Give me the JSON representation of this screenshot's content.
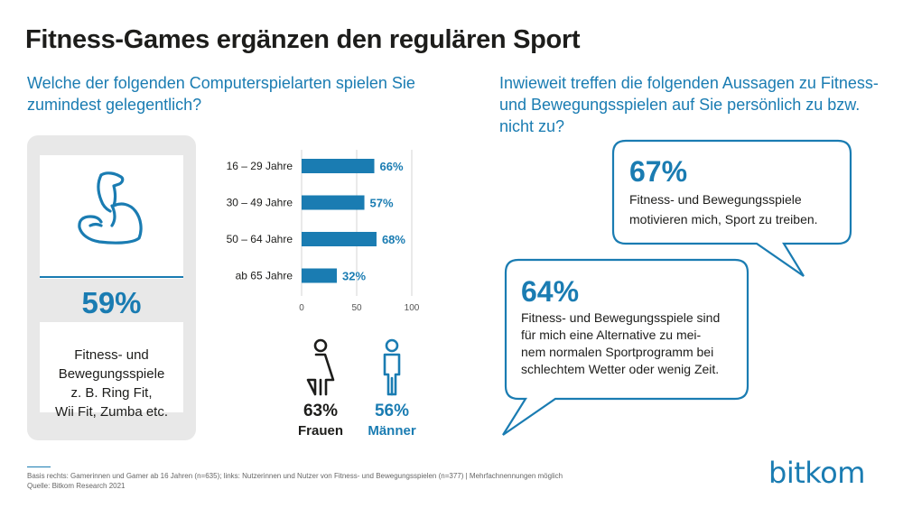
{
  "header": {
    "title": "Fitness-Games ergänzen den regulären Sport",
    "question_left": "Welche der folgenden Computerspielarten spielen Sie zumindest gelegentlich?",
    "question_right": "Inwieweit treffen die folgenden Aussagen zu Fitness- und Bewegungsspielen auf Sie persönlich zu bzw. nicht zu?"
  },
  "card": {
    "icon": "flexed-arm-icon",
    "percent": "59%",
    "lines": [
      "Fitness- und",
      "Bewegungsspiele",
      "z. B. Ring Fit,",
      "Wii Fit, Zumba etc."
    ]
  },
  "chart_data": {
    "type": "bar",
    "orientation": "horizontal",
    "categories": [
      "16 – 29 Jahre",
      "30 – 49 Jahre",
      "50 – 64 Jahre",
      "ab 65 Jahre"
    ],
    "values": [
      66,
      57,
      68,
      32
    ],
    "labels": [
      "66%",
      "57%",
      "68%",
      "32%"
    ],
    "xlim": [
      0,
      100
    ],
    "xticks": [
      "0",
      "50",
      "100"
    ],
    "color": "#1a7cb2"
  },
  "gender": {
    "female": {
      "icon": "woman-icon",
      "percent": "63%",
      "label": "Frauen",
      "color": "#1d1d1b"
    },
    "male": {
      "icon": "man-icon",
      "percent": "56%",
      "label": "Männer",
      "color": "#1a7cb2"
    }
  },
  "bubbles": [
    {
      "percent": "67%",
      "lines": [
        "Fitness- und Bewegungsspiele",
        "motivieren mich, Sport zu treiben."
      ]
    },
    {
      "percent": "64%",
      "lines": [
        "Fitness- und Bewegungsspiele sind",
        "für mich eine Alternative zu mei-",
        "nem normalen Sportprogramm bei",
        "schlechtem Wetter oder wenig Zeit."
      ]
    }
  ],
  "footer": {
    "lines": [
      "Basis rechts: Gamerinnen und Gamer ab 16 Jahren (n=635); links: Nutzerinnen und Nutzer von Fitness- und Bewegungsspielen (n=377) | Mehrfachnennungen möglich",
      "Quelle: Bitkom Research 2021"
    ],
    "logo": "bitkom"
  }
}
